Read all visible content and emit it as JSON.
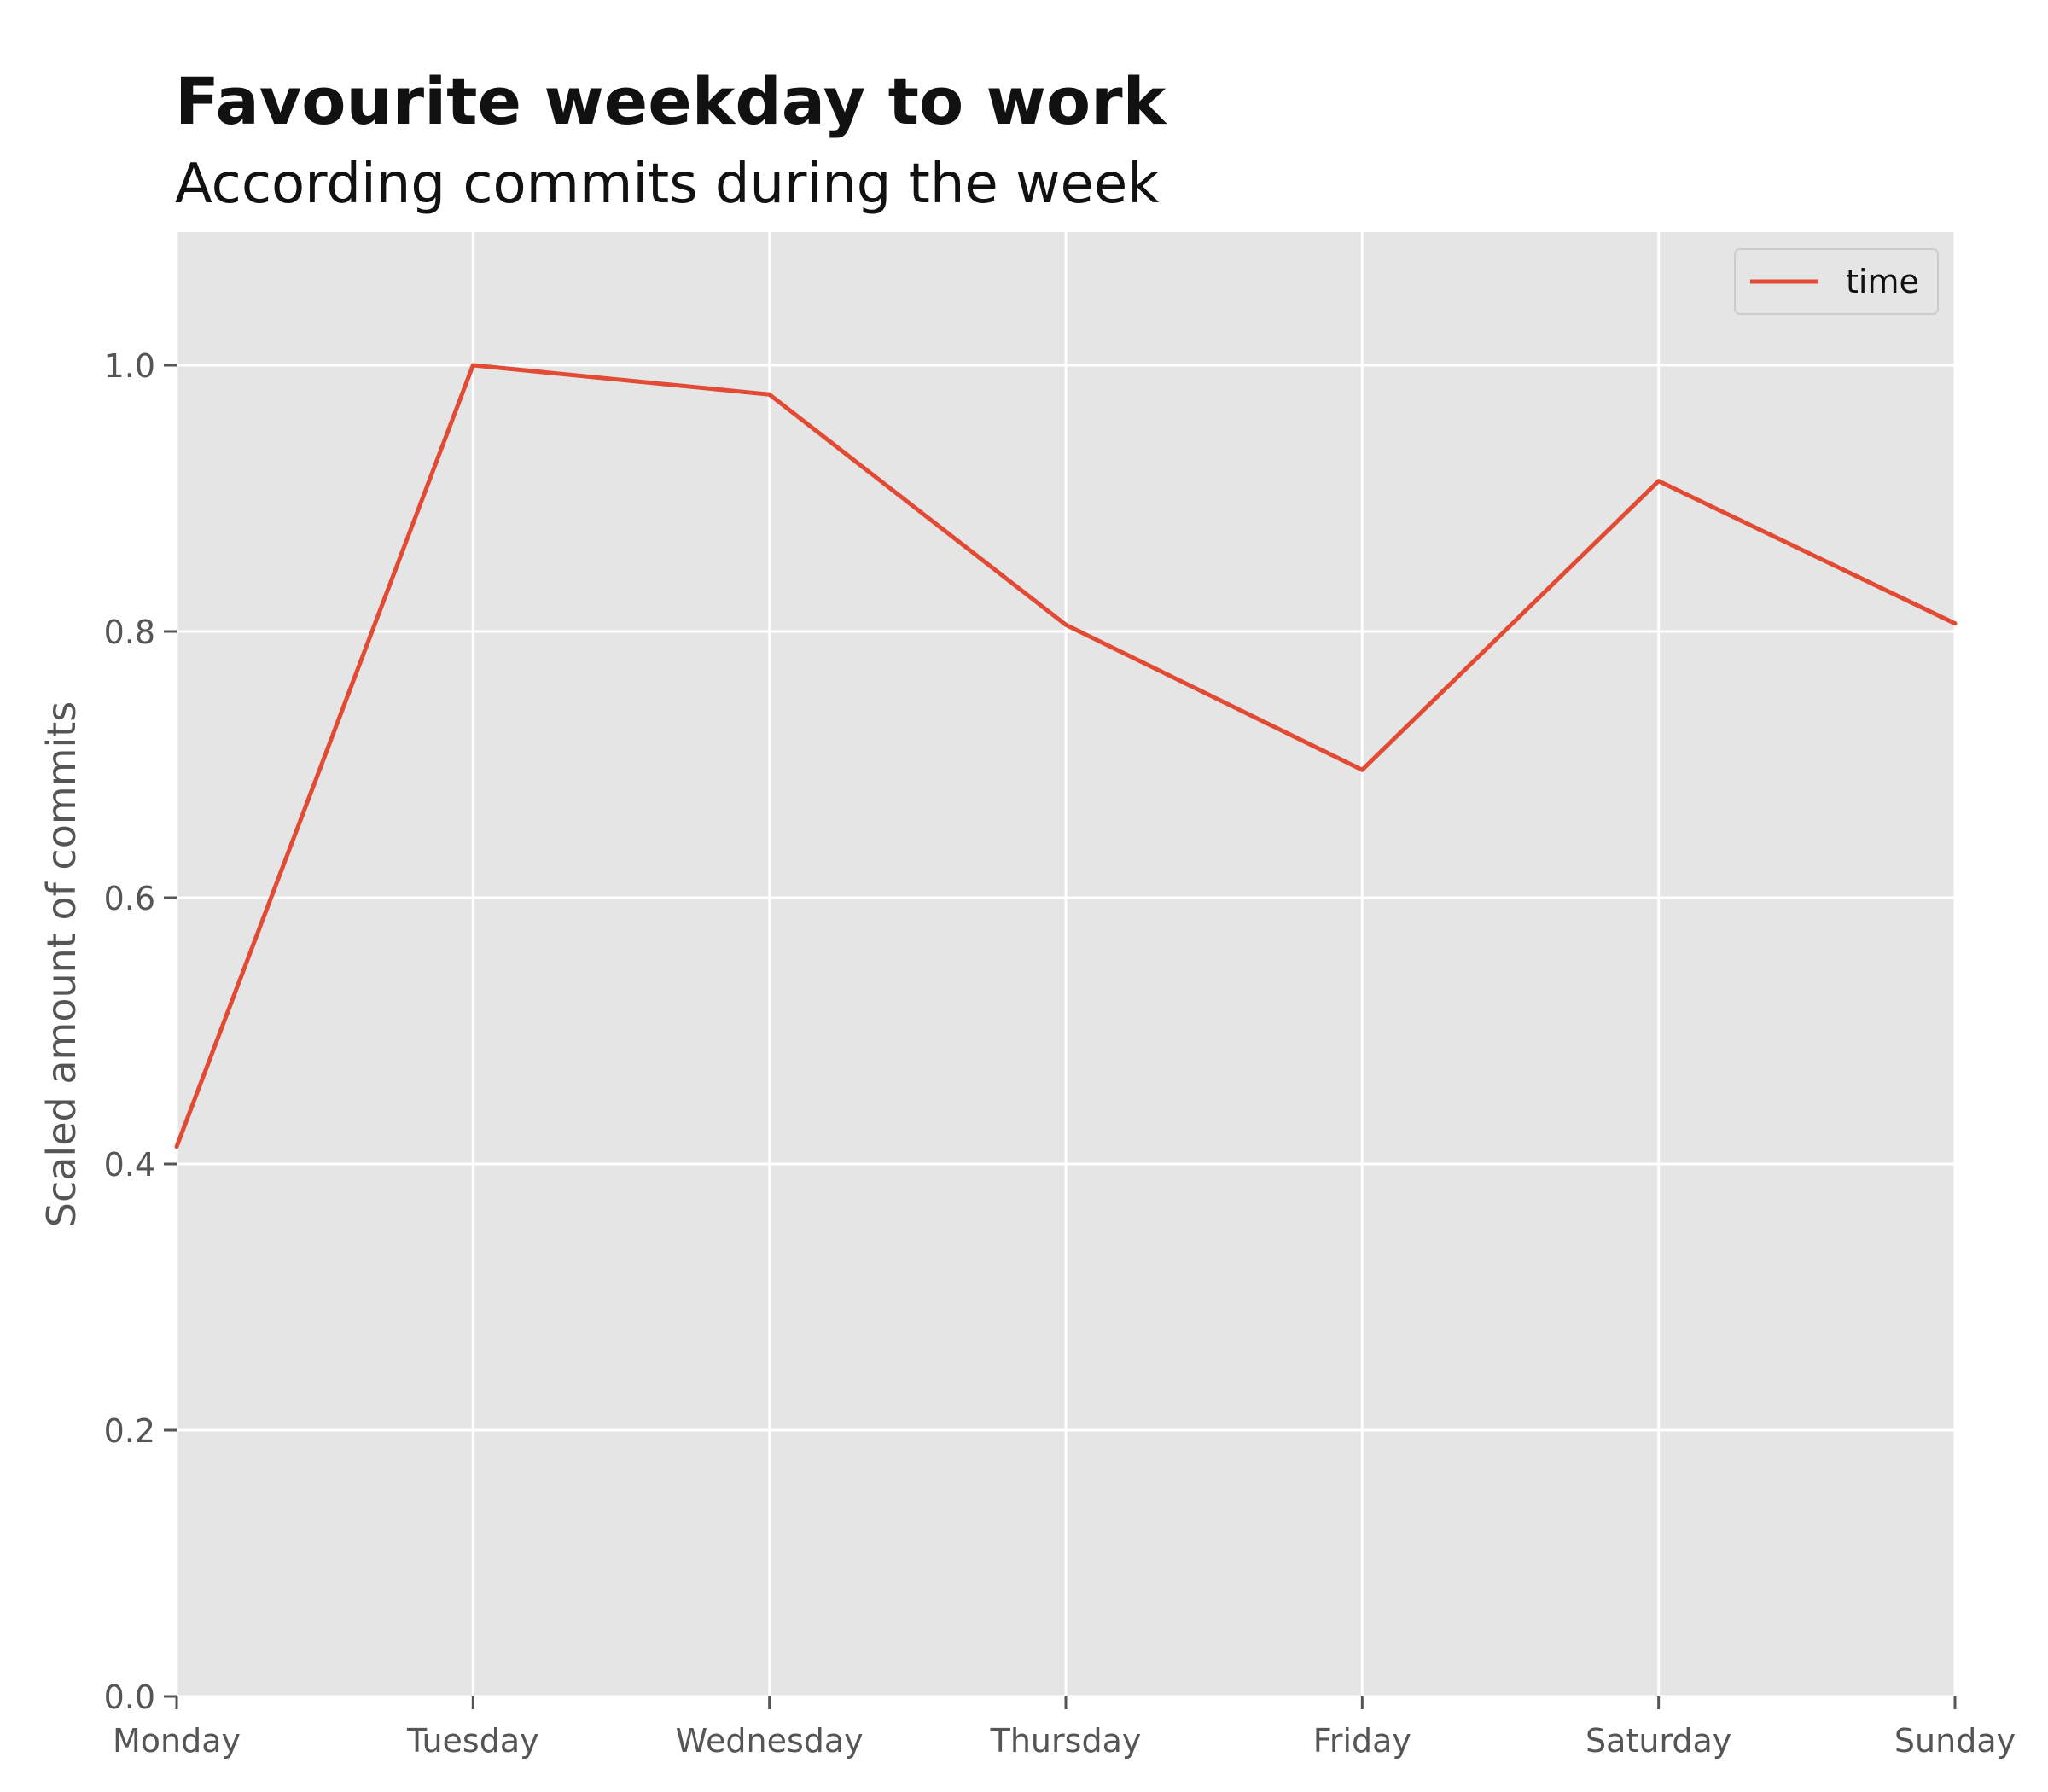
{
  "chart_data": {
    "type": "line",
    "title": "Favourite weekday to work",
    "subtitle": "According commits during the week",
    "xlabel": "",
    "ylabel": "Scaled amount of commits",
    "categories": [
      "Monday",
      "Tuesday",
      "Wednesday",
      "Thursday",
      "Friday",
      "Saturday",
      "Sunday"
    ],
    "series": [
      {
        "name": "time",
        "color": "#e24a33",
        "values": [
          0.413,
          1.0,
          0.978,
          0.805,
          0.696,
          0.913,
          0.806
        ]
      }
    ],
    "ylim": [
      0.0,
      1.1
    ],
    "yticks": [
      "0.0",
      "0.2",
      "0.4",
      "0.6",
      "0.8",
      "1.0"
    ],
    "ytick_values": [
      0.0,
      0.2,
      0.4,
      0.6,
      0.8,
      1.0
    ],
    "grid": true,
    "legend_position": "top-right",
    "colors": {
      "plot_background": "#e5e5e5",
      "grid": "#ffffff",
      "line": "#e24a33"
    }
  }
}
